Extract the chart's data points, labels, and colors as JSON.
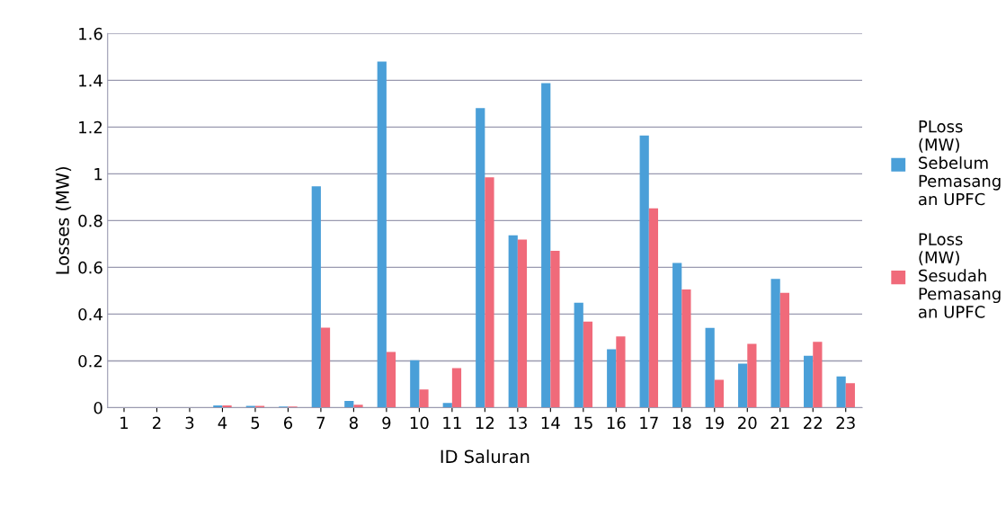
{
  "chart_data": {
    "type": "bar",
    "xlabel": "ID Saluran",
    "ylabel": "Losses (MW)",
    "categories": [
      "1",
      "2",
      "3",
      "4",
      "5",
      "6",
      "7",
      "8",
      "9",
      "10",
      "11",
      "12",
      "13",
      "14",
      "15",
      "16",
      "17",
      "18",
      "19",
      "20",
      "21",
      "22",
      "23"
    ],
    "series": [
      {
        "name": "PLoss\n(MW)\nSebelum\nPemasang\nan UPFC",
        "color": "#4a9fd8",
        "values": [
          0.001,
          null,
          0.001,
          0.009,
          0.008,
          0.005,
          0.947,
          0.029,
          1.48,
          0.203,
          0.02,
          1.281,
          0.737,
          1.388,
          0.449,
          0.25,
          1.164,
          0.619,
          0.341,
          0.188,
          0.551,
          0.222,
          0.133
        ]
      },
      {
        "name": "PLoss\n(MW)\nSesudah\nPemasang\nan UPFC",
        "color": "#f06a7a",
        "values": [
          null,
          null,
          null,
          0.009,
          0.008,
          0.005,
          0.342,
          0.012,
          0.238,
          0.078,
          0.169,
          0.985,
          0.719,
          0.671,
          0.368,
          0.305,
          0.852,
          0.505,
          0.119,
          0.273,
          0.491,
          0.281,
          0.105
        ]
      }
    ],
    "ylim": [
      0,
      1.6
    ],
    "yticks": [
      0,
      0.2,
      0.4,
      0.6,
      0.8,
      1,
      1.2,
      1.4,
      1.6
    ],
    "grid": "y",
    "legend": "right"
  }
}
